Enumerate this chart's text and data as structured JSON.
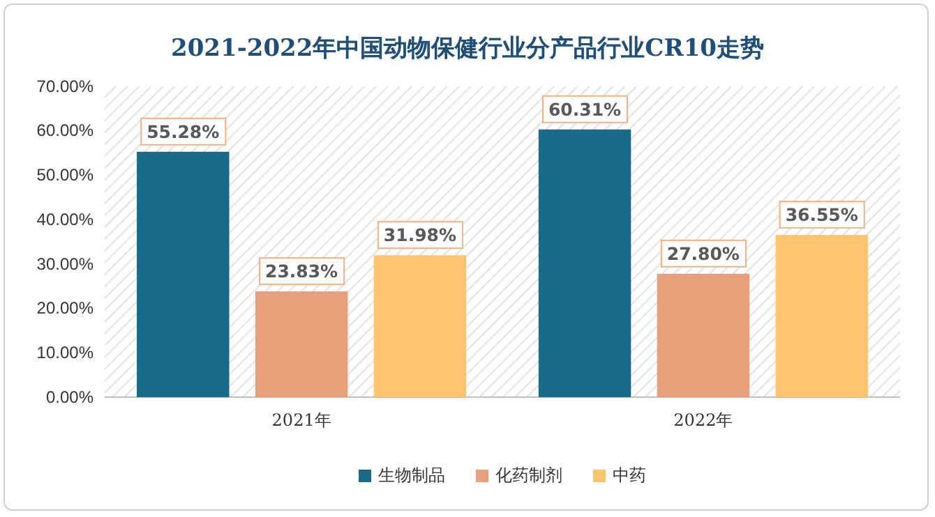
{
  "chart_data": {
    "type": "bar",
    "title": "2021-2022年中国动物保健行业分产品行业CR10走势",
    "categories": [
      "2021年",
      "2022年"
    ],
    "series": [
      {
        "name": "生物制品",
        "color": "#1b6a8a",
        "values": [
          55.28,
          60.31
        ],
        "value_labels": [
          "55.28%",
          "60.31%"
        ]
      },
      {
        "name": "化药制剂",
        "color": "#e89f7c",
        "values": [
          23.83,
          27.8
        ],
        "value_labels": [
          "23.83%",
          "27.80%"
        ]
      },
      {
        "name": "中药",
        "color": "#ffc470",
        "values": [
          31.98,
          36.55
        ],
        "value_labels": [
          "31.98%",
          "36.55%"
        ]
      }
    ],
    "ylim": [
      0,
      70
    ],
    "yticks": [
      {
        "value": 0,
        "label": "0.00%"
      },
      {
        "value": 10,
        "label": "10.00%"
      },
      {
        "value": 20,
        "label": "20.00%"
      },
      {
        "value": 30,
        "label": "30.00%"
      },
      {
        "value": 40,
        "label": "40.00%"
      },
      {
        "value": 50,
        "label": "50.00%"
      },
      {
        "value": 60,
        "label": "60.00%"
      },
      {
        "value": 70,
        "label": "70.00%"
      }
    ],
    "grid": false,
    "legend": "bottom"
  }
}
